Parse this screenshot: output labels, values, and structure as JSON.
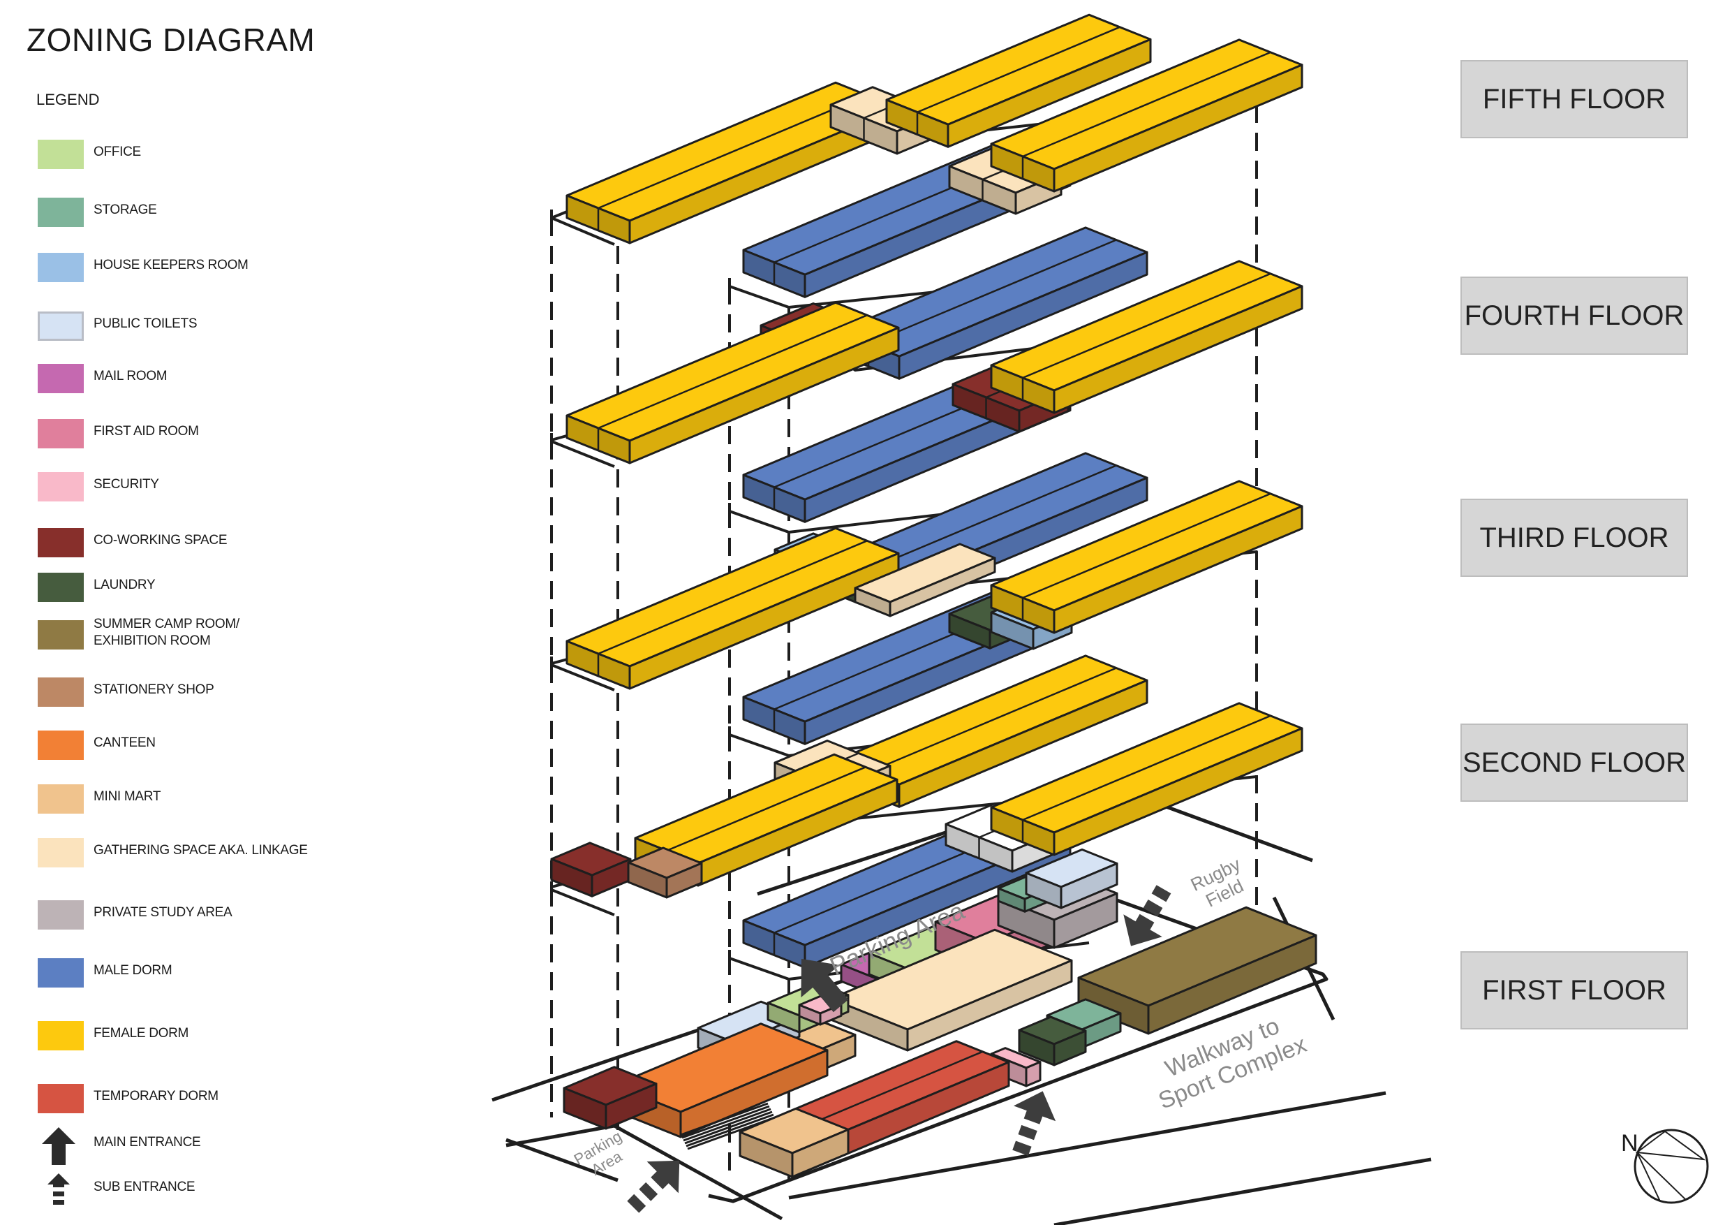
{
  "title": "ZONING DIAGRAM",
  "legend": {
    "heading": "LEGEND",
    "items": [
      {
        "label": "OFFICE",
        "color": "#c2e097"
      },
      {
        "label": "STORAGE",
        "color": "#7eb49a"
      },
      {
        "label": "HOUSE KEEPERS ROOM",
        "color": "#9ac0e6"
      },
      {
        "label": "PUBLIC TOILETS",
        "color": "#d6e3f4"
      },
      {
        "label": "MAIL ROOM",
        "color": "#c569b0"
      },
      {
        "label": "FIRST AID ROOM",
        "color": "#e07f9c"
      },
      {
        "label": "SECURITY",
        "color": "#f9b9c9"
      },
      {
        "label": "CO-WORKING SPACE",
        "color": "#872f2b"
      },
      {
        "label": "LAUNDRY",
        "color": "#465c3e"
      },
      {
        "label": "SUMMER CAMP ROOM/\nEXHIBITION ROOM",
        "color": "#8f7a44"
      },
      {
        "label": "STATIONERY SHOP",
        "color": "#bd8865"
      },
      {
        "label": "CANTEEN",
        "color": "#f28035"
      },
      {
        "label": "MINI MART",
        "color": "#f0c38d"
      },
      {
        "label": "GATHERING SPACE AKA. LINKAGE",
        "color": "#fbe3bd"
      },
      {
        "label": "PRIVATE STUDY AREA",
        "color": "#bdb3b6"
      },
      {
        "label": "MALE DORM",
        "color": "#5c7fc2"
      },
      {
        "label": "FEMALE DORM",
        "color": "#fdc90e"
      },
      {
        "label": "TEMPORARY DORM",
        "color": "#d65442"
      },
      {
        "label": "MAIN ENTRANCE",
        "icon": "main-entrance-arrow-icon"
      },
      {
        "label": "SUB ENTRANCE",
        "icon": "sub-entrance-arrow-icon"
      }
    ]
  },
  "floors": [
    "FIFTH FLOOR",
    "FOURTH FLOOR",
    "THIRD FLOOR",
    "SECOND FLOOR",
    "FIRST FLOOR"
  ],
  "site_labels": {
    "parking_area_top": "Parking Area",
    "parking_area_bottom": "Parking\nArea",
    "rugby_field": "Rugby\nField",
    "walkway": "Walkway to\nSport Complex"
  },
  "north_label": "N",
  "colors": {
    "female": "#fdc90e",
    "male": "#5c7fc2",
    "linkage": "#fbe3bd",
    "coworking": "#872f2b",
    "laundry": "#465c3e",
    "housekeeper": "#9ac0e6",
    "stationery": "#bd8865",
    "canteen": "#f28035",
    "temporary": "#d65442",
    "minimart": "#f0c38d",
    "summercamp": "#8f7a44",
    "storage": "#7eb49a",
    "office": "#c2e097",
    "firstaid": "#e07f9c",
    "study": "#bdb3b6",
    "toilets": "#d6e3f4",
    "mail": "#c569b0",
    "security": "#f9b9c9",
    "black": "#1e1e1e",
    "white": "#ffffff",
    "arrow": "#3d3d3d",
    "label_grey": "#8a8a8a"
  }
}
